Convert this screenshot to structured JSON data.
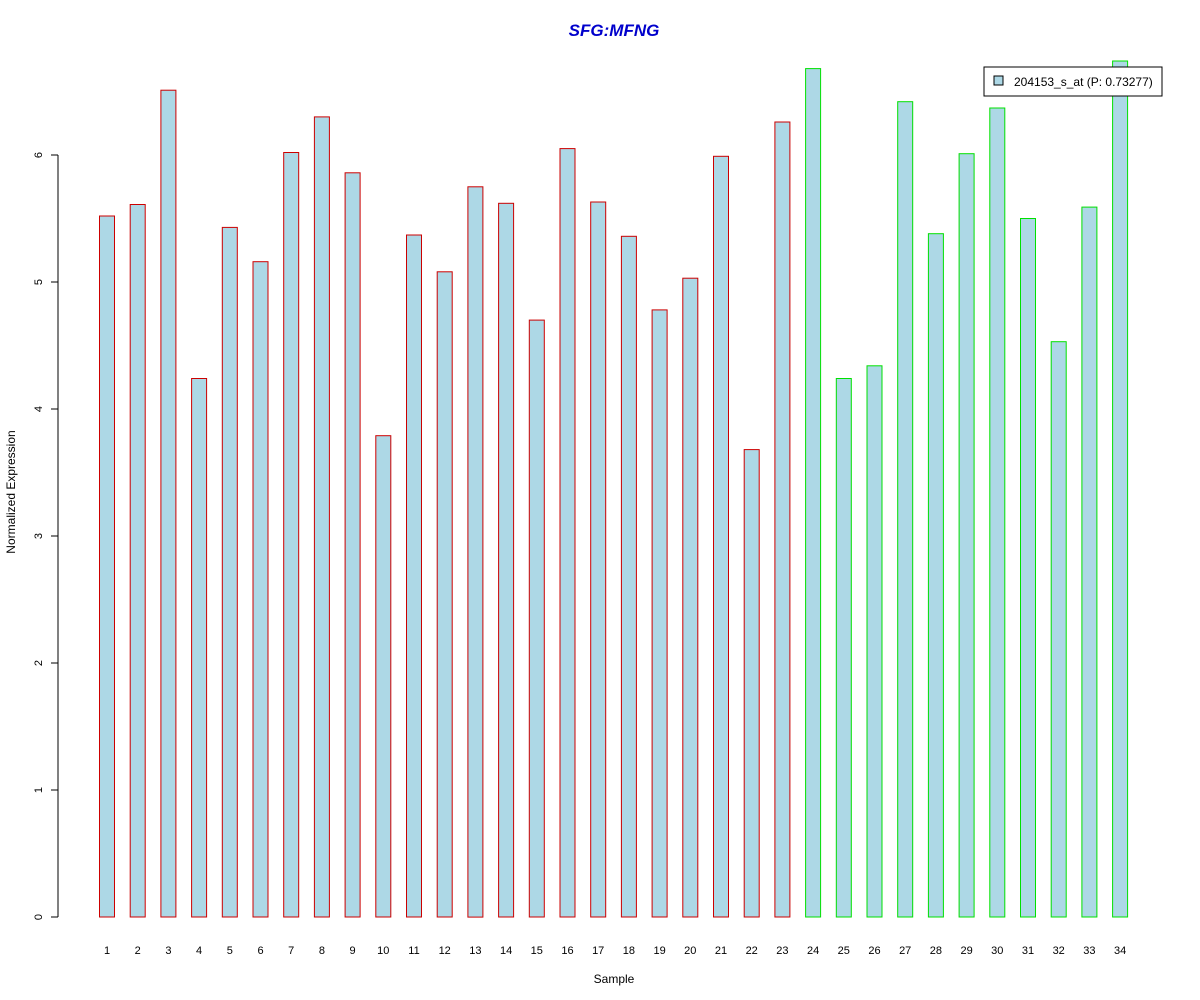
{
  "colors": {
    "title": "#0000CC",
    "bar_fill": "#ADD8E6",
    "group1_border": "#CC0000",
    "group2_border": "#00E000",
    "axis": "#000000"
  },
  "chart_data": {
    "type": "bar",
    "title": "SFG:MFNG",
    "xlabel": "Sample",
    "ylabel": "Normalized Expression",
    "ylim": [
      0,
      6.8
    ],
    "yticks": [
      0,
      1,
      2,
      3,
      4,
      5,
      6
    ],
    "grid": false,
    "legend": {
      "position": "top-right",
      "label": "204153_s_at (P: 0.73277)"
    },
    "categories": [
      "1",
      "2",
      "3",
      "4",
      "5",
      "6",
      "7",
      "8",
      "9",
      "10",
      "11",
      "12",
      "13",
      "14",
      "15",
      "16",
      "17",
      "18",
      "19",
      "20",
      "21",
      "22",
      "23",
      "24",
      "25",
      "26",
      "27",
      "28",
      "29",
      "30",
      "31",
      "32",
      "33",
      "34"
    ],
    "values": [
      5.52,
      5.61,
      6.51,
      4.24,
      5.43,
      5.16,
      6.02,
      6.3,
      5.86,
      3.79,
      5.37,
      5.08,
      5.75,
      5.62,
      4.7,
      6.05,
      5.63,
      5.36,
      4.78,
      5.03,
      5.99,
      3.68,
      6.26,
      6.68,
      4.24,
      4.34,
      6.42,
      5.38,
      6.01,
      6.37,
      5.5,
      4.53,
      5.59,
      6.74
    ],
    "group": [
      1,
      1,
      1,
      1,
      1,
      1,
      1,
      1,
      1,
      1,
      1,
      1,
      1,
      1,
      1,
      1,
      1,
      1,
      1,
      1,
      1,
      1,
      1,
      2,
      2,
      2,
      2,
      2,
      2,
      2,
      2,
      2,
      2,
      2
    ]
  }
}
